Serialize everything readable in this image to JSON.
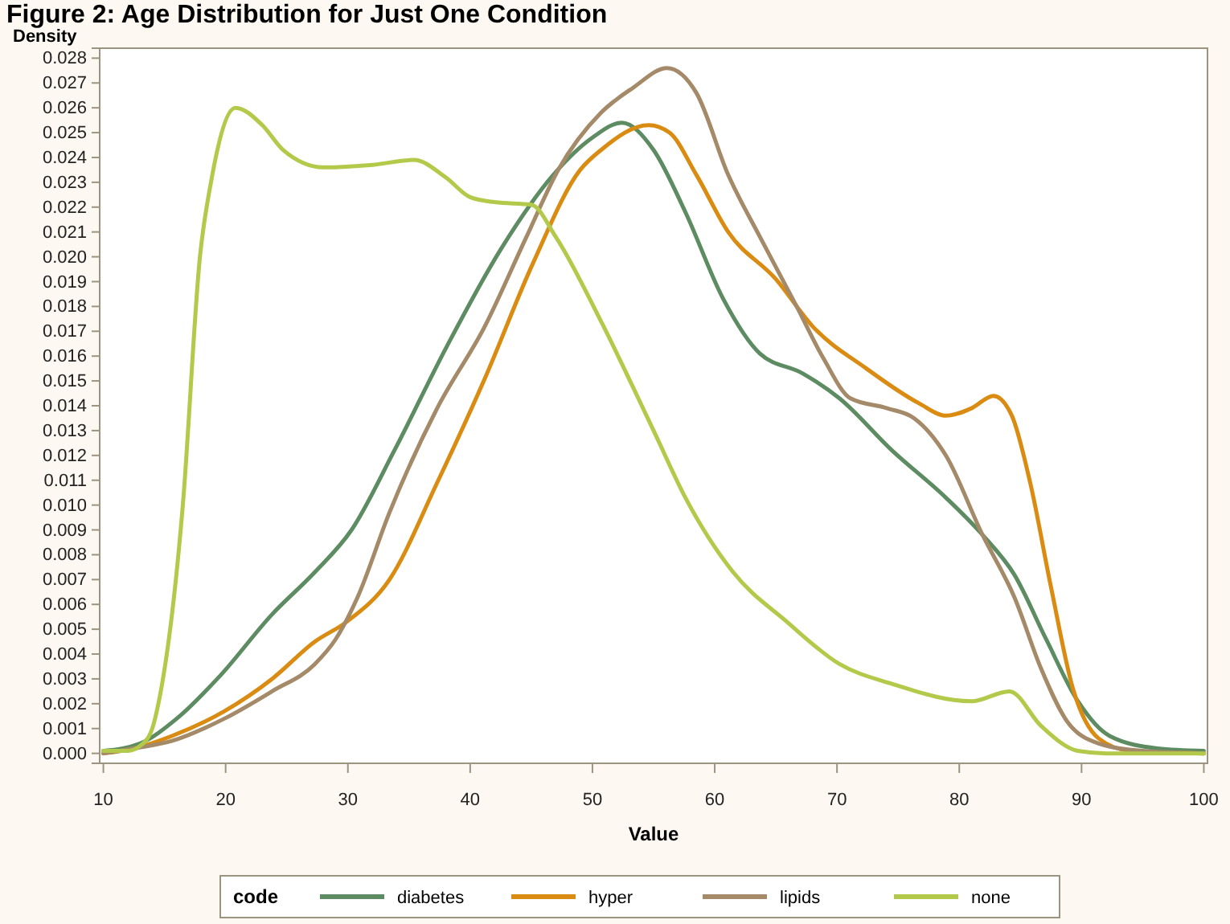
{
  "chart_data": {
    "type": "line",
    "title": "Figure 2: Age Distribution for Just One Condition",
    "ylabel": "Density",
    "xlabel": "Value",
    "legend_title": "code",
    "legend": "bottom",
    "grid": false,
    "marker": "none",
    "line_style": "solid",
    "xlim": [
      9.7,
      100.3
    ],
    "xticks": [
      10,
      20,
      30,
      40,
      50,
      60,
      70,
      80,
      90,
      100
    ],
    "ylim": [
      -0.0004,
      0.0284
    ],
    "yticks": [
      {
        "value": 0,
        "label": "0.000"
      },
      0.001,
      0.002,
      0.003,
      0.004,
      0.005,
      0.006,
      0.007,
      0.008,
      0.009,
      {
        "value": 0.01,
        "label": "0.010"
      },
      0.011,
      0.012,
      0.013,
      0.014,
      0.015,
      0.016,
      0.017,
      0.018,
      0.019,
      {
        "value": 0.02,
        "label": "0.020"
      },
      0.021,
      0.022,
      0.023,
      0.024,
      0.025,
      0.026,
      0.027,
      0.028
    ],
    "series": [
      {
        "name": "diabetes",
        "color": "#5e8c62",
        "x": [
          10,
          13,
          16,
          19.5,
          23.8,
          27.3,
          30.3,
          33.8,
          38.1,
          42.5,
          46.8,
          50,
          52.4,
          55,
          57.6,
          60.7,
          63.7,
          67.2,
          70.2,
          74.5,
          78.9,
          81.9,
          84.5,
          87.1,
          89.7,
          92.3,
          96.2,
          100
        ],
        "values": [
          0.0001,
          0.0004,
          0.0014,
          0.0031,
          0.0056,
          0.0073,
          0.009,
          0.0122,
          0.0164,
          0.0203,
          0.0233,
          0.0248,
          0.0254,
          0.0243,
          0.0218,
          0.0183,
          0.0161,
          0.0153,
          0.0143,
          0.0122,
          0.0103,
          0.0088,
          0.0072,
          0.0046,
          0.0021,
          0.0007,
          0.0002,
          0.0001
        ]
      },
      {
        "name": "hyper",
        "color": "#d98b12",
        "x": [
          10,
          12.5,
          15.6,
          19.9,
          23.8,
          27.3,
          29.9,
          33.4,
          37.3,
          41.2,
          45.1,
          49,
          50.7,
          54.6,
          56.3,
          58.5,
          61.1,
          65,
          68,
          72.4,
          76.7,
          78.9,
          81,
          82.8,
          84.3,
          85.8,
          87.5,
          89.3,
          91.4,
          94,
          100
        ],
        "values": [
          0,
          0.0002,
          0.0007,
          0.0017,
          0.003,
          0.0045,
          0.0053,
          0.007,
          0.0109,
          0.0151,
          0.0197,
          0.0235,
          0.0243,
          0.0253,
          0.025,
          0.0233,
          0.021,
          0.0191,
          0.0172,
          0.0155,
          0.0141,
          0.0136,
          0.0139,
          0.0144,
          0.0136,
          0.0109,
          0.0067,
          0.0026,
          0.0006,
          0.0001,
          0
        ]
      },
      {
        "name": "lipids",
        "color": "#a48a68",
        "x": [
          10,
          12.5,
          15.6,
          19.9,
          23.8,
          27.3,
          29,
          30.8,
          33.4,
          37.3,
          41.2,
          44.6,
          47.2,
          50.7,
          53.3,
          56.1,
          58.5,
          61.1,
          63.7,
          66.7,
          68.9,
          71.1,
          74.1,
          76.3,
          78.9,
          81.9,
          84.5,
          86.7,
          88.8,
          91.4,
          95,
          100
        ],
        "values": [
          0,
          0.0002,
          0.0005,
          0.0014,
          0.0025,
          0.0036,
          0.0046,
          0.0063,
          0.0097,
          0.0139,
          0.0172,
          0.0208,
          0.0235,
          0.0258,
          0.0268,
          0.0276,
          0.0266,
          0.0233,
          0.0208,
          0.018,
          0.0159,
          0.0143,
          0.0139,
          0.0135,
          0.012,
          0.0088,
          0.0063,
          0.0034,
          0.0013,
          0.0004,
          0.0001,
          0
        ]
      },
      {
        "name": "none",
        "color": "#b2c94a",
        "x": [
          10,
          12,
          13,
          14,
          14.5,
          16.5,
          17.9,
          18.8,
          20.8,
          23,
          24.7,
          28,
          32,
          35.4,
          38,
          40,
          42,
          45,
          47,
          50.7,
          55,
          57.6,
          61.5,
          65.9,
          70.2,
          74.5,
          81,
          84.1,
          86.7,
          89.7,
          92,
          100
        ],
        "values": [
          0.0001,
          0.0001,
          0.0003,
          0.001,
          0.002,
          0.01,
          0.02,
          0.023,
          0.026,
          0.0253,
          0.0243,
          0.0236,
          0.0237,
          0.0239,
          0.0232,
          0.0224,
          0.0222,
          0.0221,
          0.0208,
          0.0174,
          0.013,
          0.0103,
          0.0073,
          0.0053,
          0.0036,
          0.0028,
          0.0021,
          0.0025,
          0.0011,
          0.0001,
          0,
          0
        ]
      }
    ]
  }
}
